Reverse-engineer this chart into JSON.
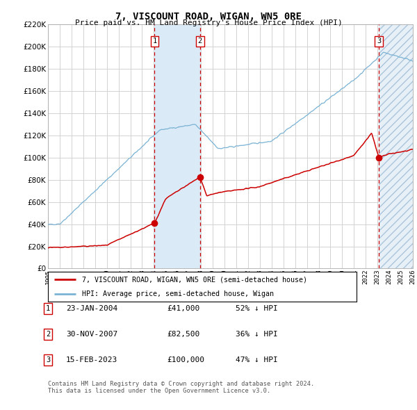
{
  "title": "7, VISCOUNT ROAD, WIGAN, WN5 0RE",
  "subtitle": "Price paid vs. HM Land Registry's House Price Index (HPI)",
  "ylim": [
    0,
    220000
  ],
  "yticks": [
    0,
    20000,
    40000,
    60000,
    80000,
    100000,
    120000,
    140000,
    160000,
    180000,
    200000,
    220000
  ],
  "ytick_labels": [
    "£0",
    "£20K",
    "£40K",
    "£60K",
    "£80K",
    "£100K",
    "£120K",
    "£140K",
    "£160K",
    "£180K",
    "£200K",
    "£220K"
  ],
  "x_start_year": 1995,
  "x_end_year": 2026,
  "hpi_color": "#7ab3d4",
  "price_color": "#cc0000",
  "sale1_date": 2004.06,
  "sale1_price": 41000,
  "sale1_label": "1",
  "sale1_text": "23-JAN-2004",
  "sale1_amount": "£41,000",
  "sale1_hpi": "52% ↓ HPI",
  "sale2_date": 2007.92,
  "sale2_price": 82500,
  "sale2_label": "2",
  "sale2_text": "30-NOV-2007",
  "sale2_amount": "£82,500",
  "sale2_hpi": "36% ↓ HPI",
  "sale3_date": 2023.12,
  "sale3_price": 100000,
  "sale3_label": "3",
  "sale3_text": "15-FEB-2023",
  "sale3_amount": "£100,000",
  "sale3_hpi": "47% ↓ HPI",
  "legend_line1": "7, VISCOUNT ROAD, WIGAN, WN5 0RE (semi-detached house)",
  "legend_line2": "HPI: Average price, semi-detached house, Wigan",
  "footer1": "Contains HM Land Registry data © Crown copyright and database right 2024.",
  "footer2": "This data is licensed under the Open Government Licence v3.0.",
  "background_color": "#ffffff",
  "grid_color": "#cccccc"
}
